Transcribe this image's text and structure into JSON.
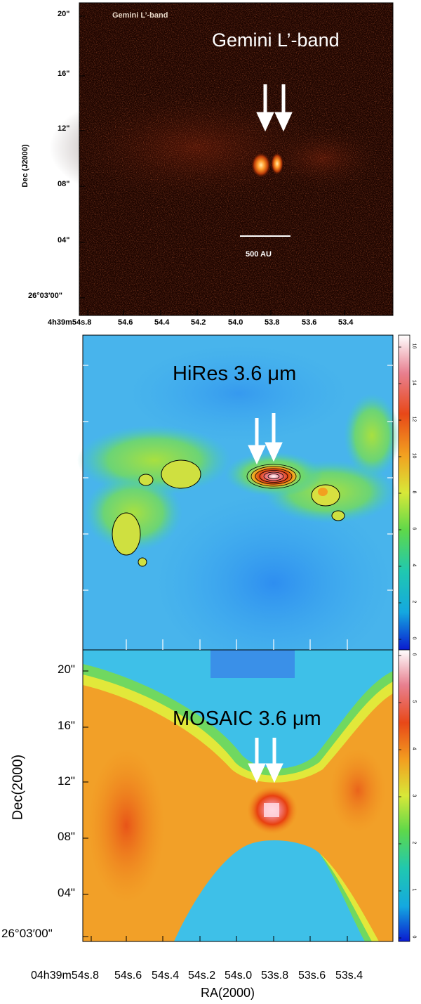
{
  "panels": {
    "gemini": {
      "title": "Gemini L’-band",
      "small_title": "Gemini L’-band",
      "scale_bar_label": "500 AU",
      "ylabel": "Dec (J2000)",
      "dec_ticks": [
        "20\"",
        "16\"",
        "12\"",
        "08\"",
        "04\"",
        "26°03′00\""
      ],
      "ra_ticks": [
        "4h39m54s.8",
        "54.6",
        "54.4",
        "54.2",
        "54.0",
        "53.8",
        "53.6",
        "53.4"
      ]
    },
    "hires": {
      "title": "HiRes 3.6 μm",
      "colorbar_ticks": [
        "0",
        "2",
        "4",
        "6",
        "8",
        "10",
        "12",
        "14",
        "16"
      ]
    },
    "mosaic": {
      "title": "MOSAIC 3.6 μm",
      "ylabel": "Dec(2000)",
      "xlabel": "RA(2000)",
      "dec_ticks": [
        "20\"",
        "16\"",
        "12\"",
        "08\"",
        "04\"",
        "26°03′00\""
      ],
      "ra_ticks": [
        "04h39m54s.8",
        "54s.6",
        "54s.4",
        "54s.2",
        "54s.0",
        "53s.8",
        "53s.6",
        "53s.4"
      ],
      "colorbar_ticks": [
        "0",
        "1",
        "2",
        "3",
        "4",
        "5",
        "6"
      ]
    }
  },
  "colors": {
    "gemini_bg": "#1a0500",
    "jet_low": "#1a3cd8",
    "jet_mid": "#6fd66a",
    "jet_high": "#e85a14"
  }
}
